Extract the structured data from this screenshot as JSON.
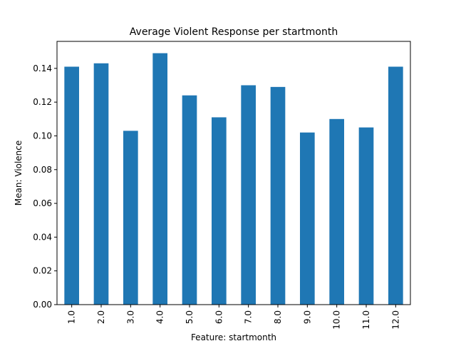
{
  "chart_data": {
    "type": "bar",
    "title": "Average Violent Response per startmonth",
    "xlabel": "Feature: startmonth",
    "ylabel": "Mean: Violence",
    "categories": [
      "1.0",
      "2.0",
      "3.0",
      "4.0",
      "5.0",
      "6.0",
      "7.0",
      "8.0",
      "9.0",
      "10.0",
      "11.0",
      "12.0"
    ],
    "values": [
      0.141,
      0.143,
      0.103,
      0.149,
      0.124,
      0.111,
      0.13,
      0.129,
      0.102,
      0.11,
      0.105,
      0.141
    ],
    "ylim": [
      0,
      0.156
    ],
    "yticks": [
      0.0,
      0.02,
      0.04,
      0.06,
      0.08,
      0.1,
      0.12,
      0.14
    ],
    "ytick_labels": [
      "0.00",
      "0.02",
      "0.04",
      "0.06",
      "0.08",
      "0.10",
      "0.12",
      "0.14"
    ],
    "bar_color": "#1f77b4",
    "grid": false,
    "legend": "none"
  }
}
